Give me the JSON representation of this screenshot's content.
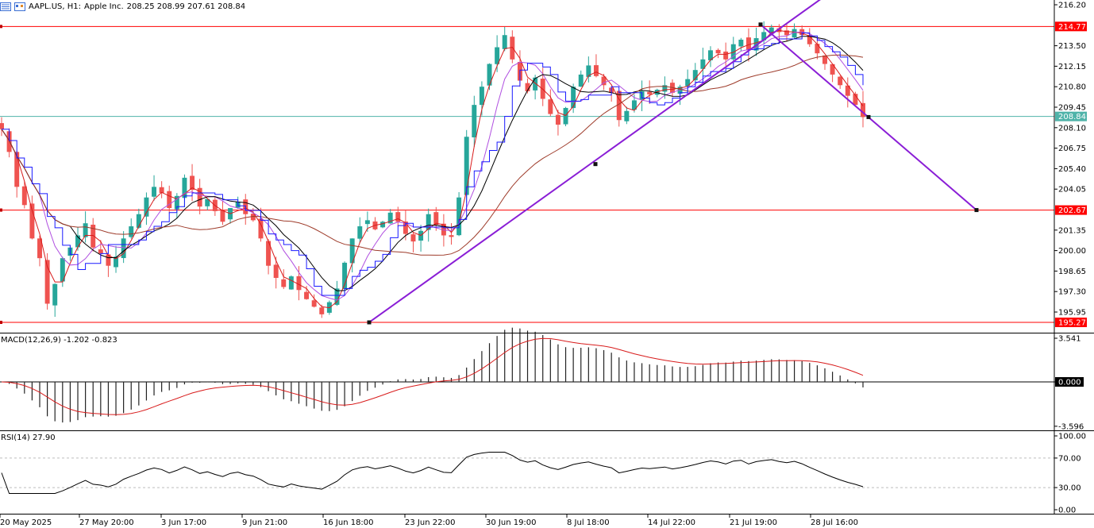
{
  "header": {
    "symbol": "AAPL.US, H1:",
    "name": "Apple Inc.",
    "ohlc": "208.25 208.99 207.61 208.84"
  },
  "colors": {
    "bull": "#26a69a",
    "bear": "#ef5350",
    "hline": "#ff0000",
    "bid": "#4fb3a9",
    "trend": "#8a1ed6",
    "ma_red": "#d81b1b",
    "ma_black": "#000000",
    "ma_blue": "#1a1aff",
    "ma_violet": "#b04fe0",
    "ma_brown": "#9e3b2a"
  },
  "chart_data": [
    {
      "type": "candlestick",
      "title": "AAPL.US, H1: Apple Inc.",
      "ohlc_last": {
        "open": 208.25,
        "high": 208.99,
        "low": 207.61,
        "close": 208.84
      },
      "y_ticks": [
        "216.20",
        "213.50",
        "212.15",
        "210.80",
        "209.45",
        "208.10",
        "206.75",
        "205.40",
        "204.05",
        "201.35",
        "200.00",
        "198.65",
        "197.30",
        "195.95"
      ],
      "ylim": [
        194.8,
        216.6
      ],
      "x_tick_labels": [
        "20 May 2025",
        "27 May 20:00",
        "3 Jun 17:00",
        "9 Jun 21:00",
        "16 Jun 18:00",
        "23 Jun 22:00",
        "30 Jun 19:00",
        "8 Jul 18:00",
        "14 Jul 22:00",
        "21 Jul 19:00",
        "28 Jul 16:00"
      ],
      "price_levels": [
        {
          "label": "214.77",
          "value": 214.77
        },
        {
          "label": "202.67",
          "value": 202.67
        },
        {
          "label": "195.27",
          "value": 195.27
        }
      ],
      "current_price": {
        "label": "208.84",
        "value": 208.84
      },
      "closes_approx": [
        208.0,
        206.5,
        204.2,
        203.0,
        200.8,
        199.5,
        196.5,
        197.8,
        199.5,
        200.2,
        201.0,
        201.8,
        200.2,
        199.8,
        199.0,
        199.6,
        200.8,
        201.6,
        202.4,
        203.5,
        204.2,
        203.8,
        202.8,
        203.6,
        204.8,
        204.0,
        202.9,
        203.4,
        202.6,
        201.9,
        202.8,
        203.2,
        202.4,
        202.0,
        200.8,
        199.0,
        198.2,
        197.6,
        198.3,
        197.4,
        196.8,
        196.3,
        195.8,
        196.6,
        197.5,
        199.2,
        200.8,
        201.6,
        202.0,
        201.4,
        201.9,
        202.5,
        201.9,
        201.1,
        200.6,
        201.3,
        202.4,
        201.7,
        201.0,
        200.9,
        203.5,
        207.5,
        209.6,
        210.8,
        212.3,
        213.4,
        214.2,
        212.6,
        211.2,
        210.5,
        211.4,
        210.0,
        209.0,
        208.3,
        209.4,
        210.8,
        211.6,
        212.2,
        211.5,
        210.9,
        210.4,
        208.6,
        209.2,
        209.9,
        210.5,
        210.3,
        210.6,
        210.9,
        210.4,
        210.8,
        211.3,
        211.9,
        212.6,
        213.2,
        213.0,
        212.6,
        213.6,
        213.9,
        213.2,
        214.0,
        214.4,
        214.7,
        214.4,
        214.2,
        214.6,
        214.2,
        213.6,
        213.0,
        212.3,
        211.6,
        210.9,
        210.2,
        209.6,
        208.8
      ]
    },
    {
      "type": "bar",
      "title": "MACD(12,26,9) -1.202 -0.823",
      "series": [
        {
          "name": "MACD",
          "value": -1.202
        },
        {
          "name": "Signal",
          "value": -0.823
        }
      ],
      "y_ticks": [
        "3.541",
        "0.000",
        "-3.596"
      ],
      "ylim": [
        -4.0,
        4.0
      ]
    },
    {
      "type": "line",
      "title": "RSI(14) 27.90",
      "series": [
        {
          "name": "RSI(14)",
          "value": 27.9
        }
      ],
      "y_ticks": [
        "100.00",
        "70.00",
        "30.00",
        "0.00"
      ],
      "ylim": [
        0,
        100
      ],
      "levels": [
        70,
        30
      ]
    }
  ]
}
